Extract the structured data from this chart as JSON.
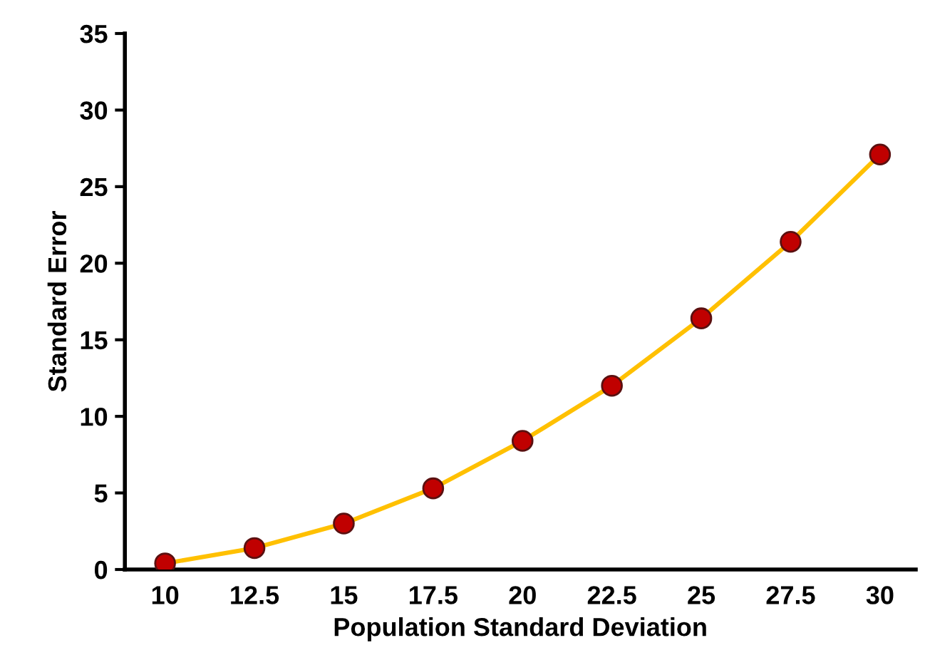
{
  "chart_data": {
    "type": "line",
    "xlabel": "Population Standard Deviation",
    "ylabel": "Standard Error",
    "categories": [
      "10",
      "12.5",
      "15",
      "17.5",
      "20",
      "22.5",
      "25",
      "27.5",
      "30"
    ],
    "series": [
      {
        "color": "#ffc000",
        "values": [
          0.4,
          1.4,
          3.0,
          5.3,
          8.4,
          12.0,
          16.4,
          21.4,
          27.1
        ]
      }
    ],
    "marker": "circle",
    "line_style": "solid",
    "ylim": [
      0,
      35
    ],
    "yticks": [
      0,
      5,
      10,
      15,
      20,
      25,
      30,
      35
    ],
    "grid": false
  }
}
